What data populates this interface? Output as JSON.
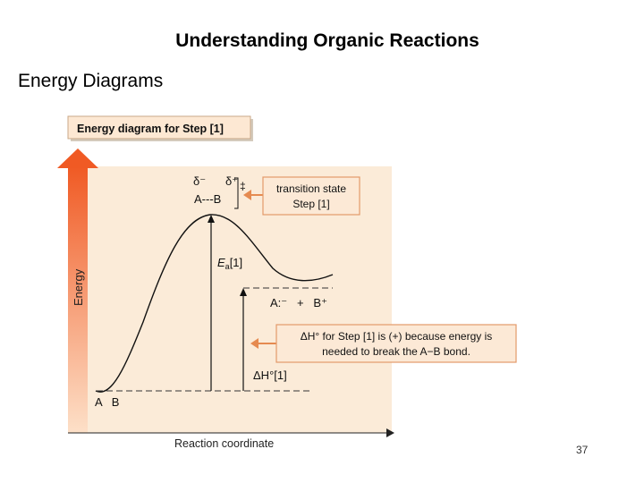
{
  "slide": {
    "title": "Understanding Organic Reactions",
    "subtitle": "Energy Diagrams",
    "page_number": "37"
  },
  "diagram": {
    "header_box": "Energy diagram for Step [1]",
    "y_axis_label": "Energy",
    "x_axis_label": "Reaction coordinate",
    "transition_state": {
      "delta_minus": "δ⁻",
      "delta_plus": "δ⁺",
      "double_dagger": "‡",
      "bond_text": "A---B"
    },
    "ts_callout": {
      "line1": "transition state",
      "line2": "Step [1]"
    },
    "activation_energy": {
      "symbol": "E",
      "subscript": "a",
      "suffix": "[1]"
    },
    "products": "A:⁻   +   B⁺",
    "reactants": "A   B",
    "delta_h_label": "ΔH°[1]",
    "dh_callout": {
      "line1": "ΔH° for Step [1] is (+) because energy is",
      "line2": "needed to break the A−B bond."
    },
    "colors": {
      "panel_background": "#fbebd8",
      "callout_fill": "#fce9d6",
      "callout_border": "#e39a6a",
      "arrow_fill": "#f27a3c",
      "accent_line": "#e58a50"
    }
  }
}
